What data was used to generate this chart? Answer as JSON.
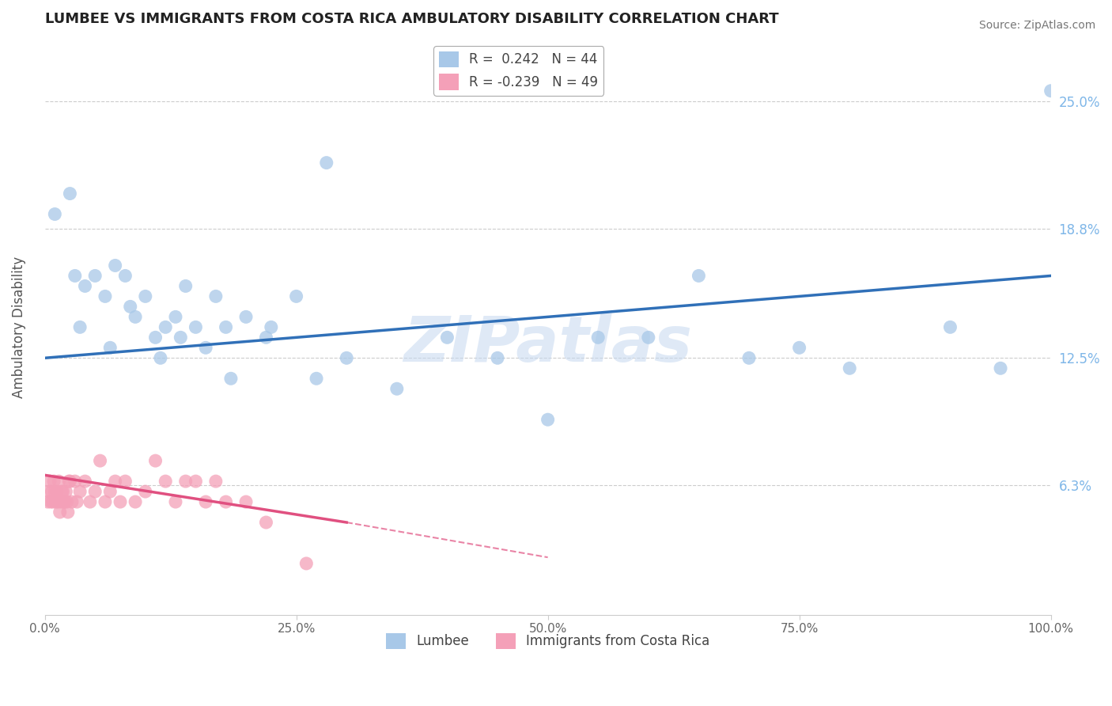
{
  "title": "LUMBEE VS IMMIGRANTS FROM COSTA RICA AMBULATORY DISABILITY CORRELATION CHART",
  "source": "Source: ZipAtlas.com",
  "ylabel": "Ambulatory Disability",
  "xlim": [
    0,
    100
  ],
  "ylim": [
    0,
    28
  ],
  "yticks": [
    0,
    6.3,
    12.5,
    18.8,
    25.0
  ],
  "ytick_labels": [
    "",
    "6.3%",
    "12.5%",
    "18.8%",
    "25.0%"
  ],
  "xtick_labels": [
    "0.0%",
    "25.0%",
    "50.0%",
    "75.0%",
    "100.0%"
  ],
  "xticks": [
    0,
    25,
    50,
    75,
    100
  ],
  "lumbee_R": 0.242,
  "lumbee_N": 44,
  "costa_rica_R": -0.239,
  "costa_rica_N": 49,
  "lumbee_color": "#A8C8E8",
  "costa_rica_color": "#F4A0B8",
  "lumbee_line_color": "#3070B8",
  "costa_rica_line_color": "#E05080",
  "background_color": "#FFFFFF",
  "watermark": "ZIPatlas",
  "lumbee_x": [
    1.0,
    2.5,
    3.0,
    4.0,
    5.0,
    6.0,
    7.0,
    8.0,
    9.0,
    10.0,
    11.0,
    12.0,
    13.0,
    14.0,
    15.0,
    16.0,
    17.0,
    18.0,
    20.0,
    22.0,
    25.0,
    28.0,
    30.0,
    35.0,
    40.0,
    45.0,
    50.0,
    55.0,
    60.0,
    65.0,
    70.0,
    75.0,
    80.0,
    90.0,
    95.0,
    100.0,
    3.5,
    6.5,
    8.5,
    11.5,
    13.5,
    18.5,
    22.5,
    27.0
  ],
  "lumbee_y": [
    19.5,
    20.5,
    16.5,
    16.0,
    16.5,
    15.5,
    17.0,
    16.5,
    14.5,
    15.5,
    13.5,
    14.0,
    14.5,
    16.0,
    14.0,
    13.0,
    15.5,
    14.0,
    14.5,
    13.5,
    15.5,
    22.0,
    12.5,
    11.0,
    13.5,
    12.5,
    9.5,
    13.5,
    13.5,
    16.5,
    12.5,
    13.0,
    12.0,
    14.0,
    12.0,
    25.5,
    14.0,
    13.0,
    15.0,
    12.5,
    13.5,
    11.5,
    14.0,
    11.5
  ],
  "costa_rica_x": [
    0.3,
    0.4,
    0.5,
    0.6,
    0.7,
    0.8,
    0.9,
    1.0,
    1.1,
    1.2,
    1.3,
    1.4,
    1.5,
    1.6,
    1.7,
    1.8,
    1.9,
    2.0,
    2.1,
    2.2,
    2.3,
    2.4,
    2.5,
    2.7,
    3.0,
    3.2,
    3.5,
    4.0,
    4.5,
    5.0,
    5.5,
    6.0,
    6.5,
    7.0,
    7.5,
    8.0,
    9.0,
    10.0,
    11.0,
    12.0,
    13.0,
    14.0,
    15.0,
    16.0,
    17.0,
    18.0,
    20.0,
    22.0,
    26.0
  ],
  "costa_rica_y": [
    5.5,
    6.0,
    6.5,
    5.5,
    6.0,
    5.5,
    6.5,
    6.0,
    5.5,
    6.0,
    5.5,
    6.5,
    5.0,
    5.5,
    6.0,
    6.0,
    5.5,
    5.5,
    6.0,
    5.5,
    5.0,
    6.5,
    6.5,
    5.5,
    6.5,
    5.5,
    6.0,
    6.5,
    5.5,
    6.0,
    7.5,
    5.5,
    6.0,
    6.5,
    5.5,
    6.5,
    5.5,
    6.0,
    7.5,
    6.5,
    5.5,
    6.5,
    6.5,
    5.5,
    6.5,
    5.5,
    5.5,
    4.5,
    2.5
  ],
  "lumbee_line_x0": 0,
  "lumbee_line_y0": 12.5,
  "lumbee_line_x1": 100,
  "lumbee_line_y1": 16.5,
  "costa_rica_line_x0": 0,
  "costa_rica_line_y0": 6.8,
  "costa_rica_line_x1": 30,
  "costa_rica_line_y1": 4.5,
  "costa_rica_dash_x0": 30,
  "costa_rica_dash_y0": 4.5,
  "costa_rica_dash_x1": 50,
  "costa_rica_dash_y1": 2.8
}
